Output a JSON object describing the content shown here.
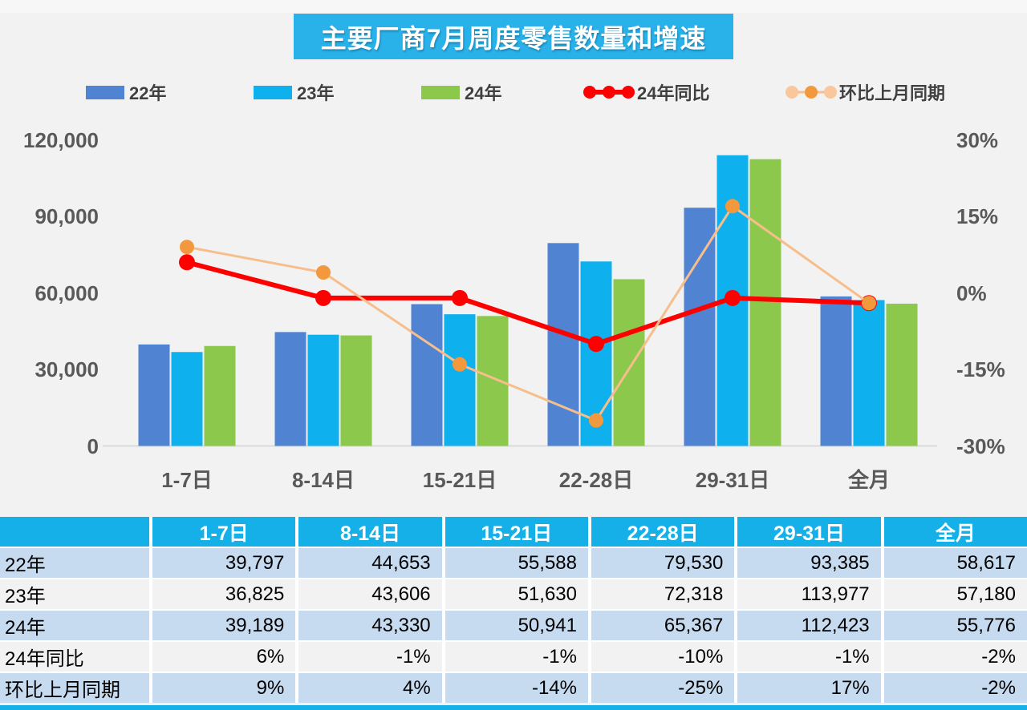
{
  "chart_data": {
    "type": "combo-bar-line",
    "title": "主要厂商7月周度零售数量和增速",
    "categories": [
      "1-7日",
      "8-14日",
      "15-21日",
      "22-28日",
      "29-31日",
      "全月"
    ],
    "bar_series": [
      {
        "name": "22年",
        "color": "#5084D2",
        "values": [
          39797,
          44653,
          55588,
          79530,
          93385,
          58617
        ]
      },
      {
        "name": "23年",
        "color": "#0FB0EE",
        "values": [
          36825,
          43606,
          51630,
          72318,
          113977,
          57180
        ]
      },
      {
        "name": "24年",
        "color": "#8CC84C",
        "values": [
          39189,
          43330,
          50941,
          65367,
          112423,
          55776
        ]
      }
    ],
    "line_series": [
      {
        "name": "24年同比",
        "line_color": "#FE0000",
        "dot_color": "#FE0000",
        "values_pct": [
          6,
          -1,
          -1,
          -10,
          -1,
          -2
        ]
      },
      {
        "name": "环比上月同期",
        "line_color": "#F7BE8C",
        "dot_color": "#F2993E",
        "dot_outer_color": "#F8C79B",
        "values_pct": [
          9,
          4,
          -14,
          -25,
          17,
          -2
        ]
      }
    ],
    "left_axis": {
      "min": 0,
      "max": 120000,
      "tick_values": [
        0,
        30000,
        60000,
        90000,
        120000
      ],
      "tick_labels": [
        "0",
        "30,000",
        "60,000",
        "90,000",
        "120,000"
      ]
    },
    "right_axis": {
      "min": -30,
      "max": 30,
      "tick_values": [
        -30,
        -15,
        0,
        15,
        30
      ],
      "tick_labels": [
        "-30%",
        "-15%",
        "0%",
        "15%",
        "30%"
      ]
    },
    "grid": false,
    "legend_position": "top",
    "baseline_color": "#DBDBDB"
  },
  "legend": {
    "items": [
      {
        "label": "22年",
        "type": "bar",
        "color": "#5084D2"
      },
      {
        "label": "23年",
        "type": "bar",
        "color": "#0FB0EE"
      },
      {
        "label": "24年",
        "type": "bar",
        "color": "#8CC84C"
      },
      {
        "label": "24年同比",
        "type": "line",
        "color": "#FE0000",
        "dot_color": "#FE0000",
        "dot_outer_color": "#FE0000"
      },
      {
        "label": "环比上月同期",
        "type": "line",
        "color": "#F7BE8C",
        "dot_color": "#F2993E",
        "dot_outer_color": "#F8C79B"
      }
    ]
  },
  "table": {
    "header": [
      "",
      "1-7日",
      "8-14日",
      "15-21日",
      "22-28日",
      "29-31日",
      "全月"
    ],
    "rows": [
      {
        "label": "22年",
        "shade": "blue",
        "cells": [
          "39,797",
          "44,653",
          "55,588",
          "79,530",
          "93,385",
          "58,617"
        ]
      },
      {
        "label": "23年",
        "shade": "gray",
        "cells": [
          "36,825",
          "43,606",
          "51,630",
          "72,318",
          "113,977",
          "57,180"
        ]
      },
      {
        "label": "24年",
        "shade": "blue",
        "cells": [
          "39,189",
          "43,330",
          "50,941",
          "65,367",
          "112,423",
          "55,776"
        ]
      },
      {
        "label": "24年同比",
        "shade": "gray",
        "cells": [
          "6%",
          "-1%",
          "-1%",
          "-10%",
          "-1%",
          "-2%"
        ]
      },
      {
        "label": "环比上月同期",
        "shade": "blue",
        "cells": [
          "9%",
          "4%",
          "-14%",
          "-25%",
          "17%",
          "-2%"
        ]
      }
    ],
    "colors": {
      "header_bg": "#16B0E8",
      "row_blue": "#C6DBF0",
      "row_gray": "#F2F2F2"
    }
  },
  "page": {
    "background": "#F2F2F2",
    "title_bg": "#29B2EA"
  }
}
